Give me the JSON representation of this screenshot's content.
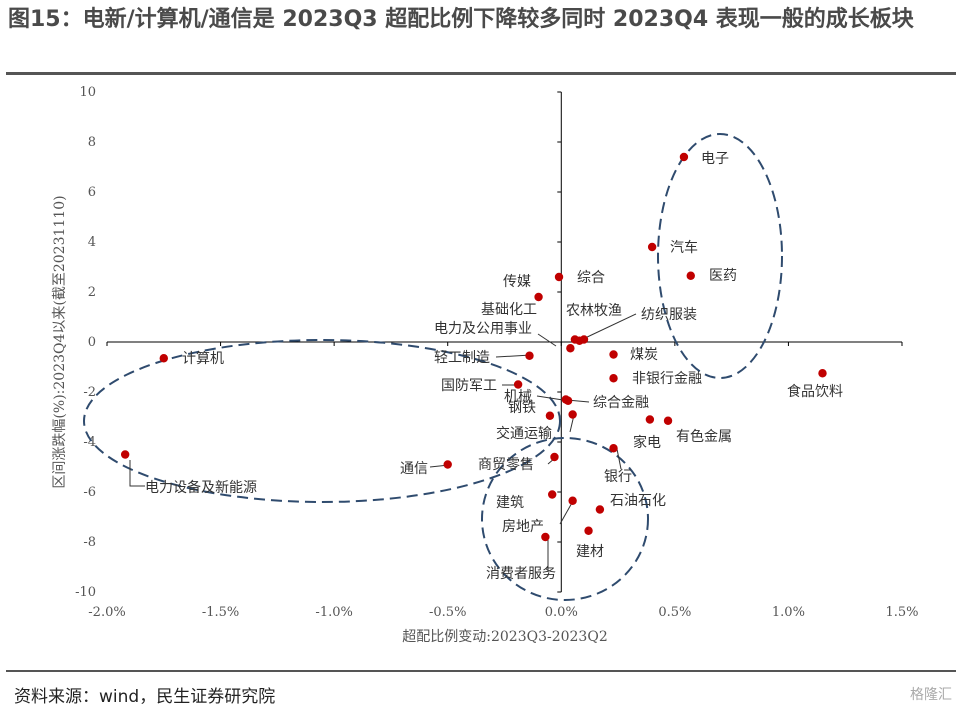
{
  "header": {
    "title": "图15：电新/计算机/通信是 2023Q3 超配比例下降较多同时 2023Q4 表现一般的成长板块"
  },
  "footer": {
    "source": "资料来源：wind，民生证券研究院",
    "watermark": "格隆汇"
  },
  "chart_data": {
    "type": "scatter",
    "xlabel": "超配比例变动:2023Q3-2023Q2",
    "ylabel": "区间涨跌幅(%):2023Q4以来(截至20231110)",
    "xlim": [
      -0.02,
      0.015
    ],
    "ylim": [
      -10,
      10
    ],
    "x_ticks": [
      "-2.0%",
      "-1.5%",
      "-1.0%",
      "-0.5%",
      "0.0%",
      "0.5%",
      "1.0%",
      "1.5%"
    ],
    "y_ticks": [
      "10",
      "8",
      "6",
      "4",
      "2",
      "0",
      "-2",
      "-4",
      "-6",
      "-8",
      "-10"
    ],
    "point_color": "#c00000",
    "ellipse_color": "#2f4b6e",
    "points": [
      {
        "label": "电子",
        "x": 0.0054,
        "y": 7.4
      },
      {
        "label": "汽车",
        "x": 0.004,
        "y": 3.8
      },
      {
        "label": "医药",
        "x": 0.0057,
        "y": 2.65
      },
      {
        "label": "综合",
        "x": -0.0001,
        "y": 2.6
      },
      {
        "label": "传媒",
        "x": -0.001,
        "y": 1.8
      },
      {
        "label": "基础化工",
        "x": 0.0006,
        "y": 0.1
      },
      {
        "label": "电力及公用事业",
        "x": 0.0004,
        "y": -0.25
      },
      {
        "label": "农林牧渔",
        "x": 0.0008,
        "y": 0.05
      },
      {
        "label": "纺织服装",
        "x": 0.001,
        "y": 0.1
      },
      {
        "label": "煤炭",
        "x": 0.0023,
        "y": -0.5
      },
      {
        "label": "轻工制造",
        "x": -0.0014,
        "y": -0.55
      },
      {
        "label": "计算机",
        "x": -0.0175,
        "y": -0.65
      },
      {
        "label": "食品饮料",
        "x": 0.0115,
        "y": -1.25
      },
      {
        "label": "非银行金融",
        "x": 0.0023,
        "y": -1.45
      },
      {
        "label": "国防军工",
        "x": -0.0019,
        "y": -1.7
      },
      {
        "label": "机械",
        "x": 0.0002,
        "y": -2.3
      },
      {
        "label": "综合金融",
        "x": 0.0003,
        "y": -2.35
      },
      {
        "label": "钢铁",
        "x": -0.0005,
        "y": -2.95
      },
      {
        "label": "交通运输",
        "x": 0.0005,
        "y": -2.9
      },
      {
        "label": "有色金属",
        "x": 0.0047,
        "y": -3.15
      },
      {
        "label": "家电",
        "x": 0.0039,
        "y": -3.1
      },
      {
        "label": "银行",
        "x": 0.0023,
        "y": -4.25
      },
      {
        "label": "电力设备及新能源",
        "x": -0.0192,
        "y": -4.5
      },
      {
        "label": "商贸零售",
        "x": -0.0003,
        "y": -4.6
      },
      {
        "label": "通信",
        "x": -0.005,
        "y": -4.9
      },
      {
        "label": "建筑",
        "x": -0.0004,
        "y": -6.1
      },
      {
        "label": "石油石化",
        "x": 0.0017,
        "y": -6.7
      },
      {
        "label": "房地产",
        "x": 0.0005,
        "y": -6.35
      },
      {
        "label": "建材",
        "x": 0.0012,
        "y": -7.55
      },
      {
        "label": "消费者服务",
        "x": -0.0007,
        "y": -7.8
      }
    ]
  }
}
